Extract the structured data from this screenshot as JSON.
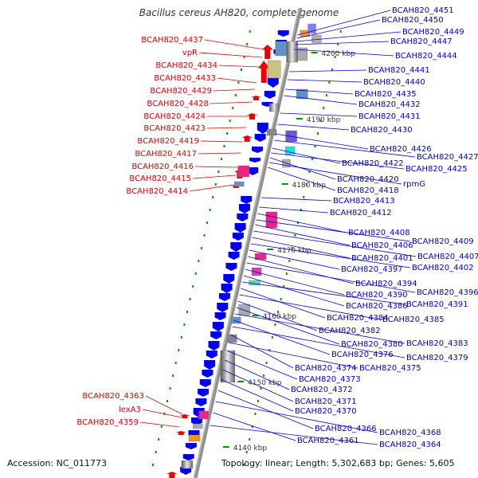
{
  "title": "Bacillus cereus AH820, complete genome",
  "accession_label": "Accession: NC_011773",
  "topology_label": "Topology: linear; Length: 5,302,683 bp; Genes: 5,605",
  "colors": {
    "left_label": "#dd0000",
    "right_label": "#0000cc",
    "axis": "#808080",
    "tick": "#009900",
    "reverse_arrow": "#ee0000",
    "forward_arrow": "#0000ee"
  },
  "scale_ticks": [
    "4200 kbp",
    "4190 kbp",
    "4180 kbp",
    "4170 kbp",
    "4160 kbp",
    "4150 kbp",
    "4140 kbp"
  ],
  "left_labels": [
    "BCAH820_4437",
    "vpR",
    "BCAH820_4434",
    "BCAH820_4433",
    "BCAH820_4429",
    "BCAH820_4428",
    "BCAH820_4424",
    "BCAH820_4423",
    "BCAH820_4419",
    "BCAH820_4417",
    "BCAH820_4416",
    "BCAH820_4415",
    "BCAH820_4414",
    "BCAH820_4363",
    "lexA3",
    "BCAH820_4359"
  ],
  "right_labels": [
    "BCAH820_4451",
    "BCAH820_4450",
    "BCAH820_4449",
    "BCAH820_4447",
    "BCAH820_4444",
    "BCAH820_4441",
    "BCAH820_4440",
    "BCAH820_4435",
    "BCAH820_4432",
    "BCAH820_4431",
    "BCAH820_4430",
    "BCAH820_4426",
    "BCAH820_4427",
    "BCAH820_4422",
    "BCAH820_4425",
    "BCAH820_4420",
    "rpmG",
    "BCAH820_4418",
    "BCAH820_4413",
    "BCAH820_4412",
    "BCAH820_4408",
    "BCAH820_4409",
    "BCAH820_4406",
    "BCAH820_4407",
    "BCAH820_4401",
    "BCAH820_4402",
    "BCAH820_4397",
    "BCAH820_4394",
    "BCAH820_4396",
    "BCAH820_4390",
    "BCAH820_4386",
    "BCAH820_4391",
    "BCAH820_4384",
    "BCAH820_4385",
    "BCAH820_4382",
    "BCAH820_4380",
    "BCAH820_4383",
    "BCAH820_4376",
    "BCAH820_4379",
    "BCAH820_4374",
    "BCAH820_4375",
    "BCAH820_4373",
    "BCAH820_4372",
    "BCAH820_4371",
    "BCAH820_4370",
    "BCAH820_4366",
    "BCAH820_4368",
    "BCAH820_4361",
    "BCAH820_4364"
  ]
}
